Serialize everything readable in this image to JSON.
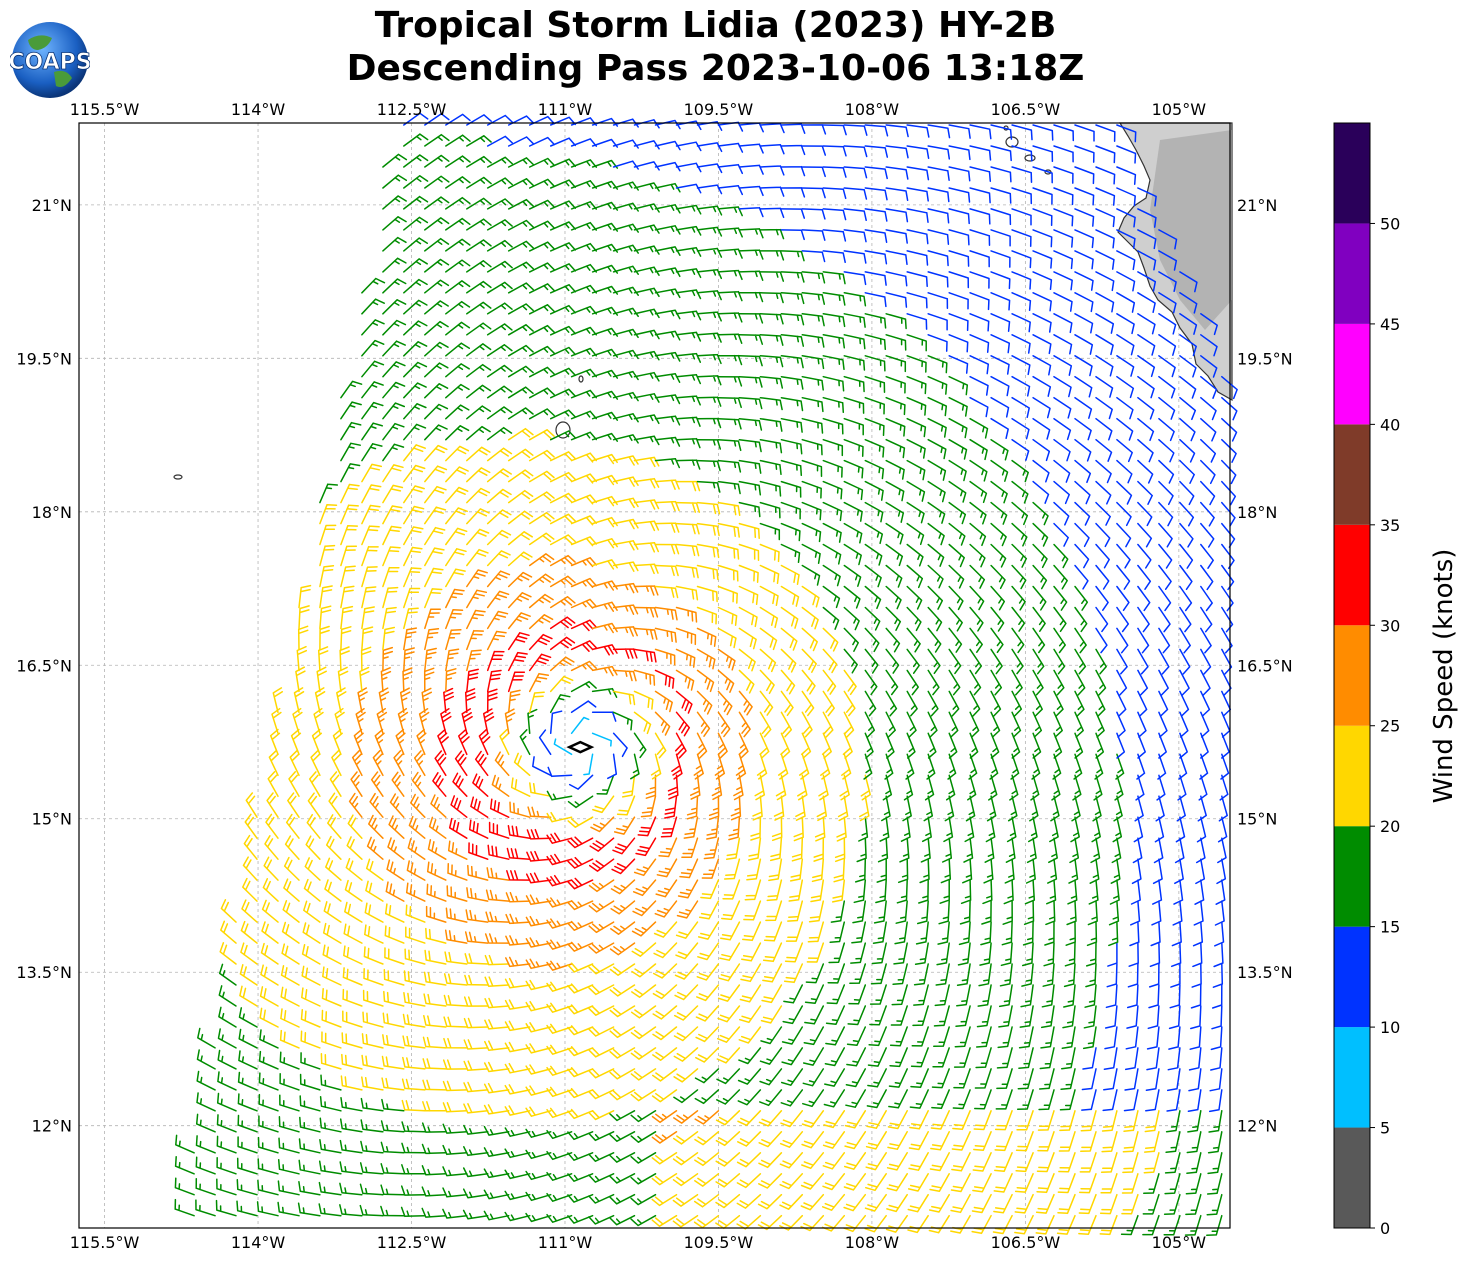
{
  "header": {
    "title_line1": "Tropical Storm Lidia (2023) HY-2B",
    "title_line2": "Descending Pass 2023-10-06 13:18Z",
    "logo_text": "COAPS"
  },
  "map": {
    "lon_labels": [
      "115.5°W",
      "114°W",
      "112.5°W",
      "111°W",
      "109.5°W",
      "108°W",
      "106.5°W",
      "105°W"
    ],
    "lon_values": [
      -115.5,
      -114,
      -112.5,
      -111,
      -109.5,
      -108,
      -106.5,
      -105
    ],
    "lat_labels": [
      "21°N",
      "19.5°N",
      "18°N",
      "16.5°N",
      "15°N",
      "13.5°N",
      "12°N"
    ],
    "lat_values": [
      21,
      19.5,
      18,
      16.5,
      15,
      13.5,
      12
    ],
    "lon_range": [
      -115.75,
      -104.5
    ],
    "lat_range": [
      11.0,
      21.8
    ],
    "gridlines": true,
    "storm_center": {
      "lon": -110.85,
      "lat": 15.7
    }
  },
  "colorbar": {
    "label": "Wind Speed (knots)",
    "ticks": [
      "0",
      "5",
      "10",
      "15",
      "20",
      "25",
      "30",
      "35",
      "40",
      "45",
      "50"
    ],
    "bins": [
      {
        "min": 0,
        "max": 5,
        "color": "#595959"
      },
      {
        "min": 5,
        "max": 10,
        "color": "#00bfff"
      },
      {
        "min": 10,
        "max": 15,
        "color": "#0033ff"
      },
      {
        "min": 15,
        "max": 20,
        "color": "#008c00"
      },
      {
        "min": 20,
        "max": 25,
        "color": "#ffd700"
      },
      {
        "min": 25,
        "max": 30,
        "color": "#ff8c00"
      },
      {
        "min": 30,
        "max": 35,
        "color": "#ff0000"
      },
      {
        "min": 35,
        "max": 40,
        "color": "#7f3b29"
      },
      {
        "min": 40,
        "max": 45,
        "color": "#ff00ff"
      },
      {
        "min": 45,
        "max": 50,
        "color": "#8000c0"
      },
      {
        "min": 50,
        "max": 55,
        "color": "#2a005a"
      }
    ]
  },
  "wind_field": {
    "max_wind_kt": 33,
    "radius_of_max_wind_deg": 1.0,
    "outer_decay": 0.42,
    "swath_left_edge_lon_top": -112.7,
    "swath_left_edge_lon_bottom": -114.8
  }
}
